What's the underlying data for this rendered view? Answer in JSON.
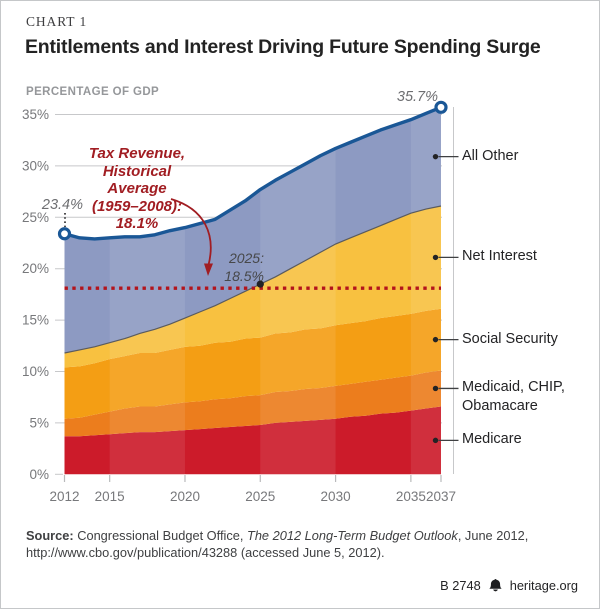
{
  "header": {
    "kicker": "CHART 1",
    "title": "Entitlements and Interest Driving Future Spending Surge",
    "unit_label": "PERCENTAGE OF GDP"
  },
  "chart_data": {
    "type": "area",
    "stacked": true,
    "title": "Entitlements and Interest Driving Future Spending Surge",
    "ylabel": "PERCENTAGE OF GDP",
    "unit": "% of GDP",
    "x_range": [
      2012,
      2037
    ],
    "x_tick_values": [
      2012,
      2015,
      2020,
      2025,
      2030,
      2035,
      2037
    ],
    "x_tick_labels": [
      "2012",
      "2015",
      "2020",
      "2025",
      "2030",
      "2035",
      "2037"
    ],
    "y_tick_values": [
      0,
      5,
      10,
      15,
      20,
      25,
      30,
      35
    ],
    "y_tick_labels": [
      "0%",
      "5%",
      "10%",
      "15%",
      "20%",
      "25%",
      "30%",
      "35%"
    ],
    "ylim": [
      0,
      36
    ],
    "grid": "horizontal",
    "grid_color": "#c7c8ca",
    "axis_color": "#77787b",
    "legend_position": "right",
    "total_line_color": "#1a5796",
    "series": [
      {
        "id": "medicare",
        "name": "Medicare",
        "legend_lines": [
          "Medicare"
        ],
        "color": "#cc1b2a",
        "values": [
          3.7,
          3.7,
          3.8,
          3.9,
          4.0,
          4.1,
          4.1,
          4.2,
          4.3,
          4.4,
          4.5,
          4.6,
          4.7,
          4.8,
          5.0,
          5.1,
          5.2,
          5.3,
          5.4,
          5.6,
          5.7,
          5.9,
          6.0,
          6.2,
          6.4,
          6.6
        ]
      },
      {
        "id": "medicaid_chip_obamacare",
        "name": "Medicaid, CHIP, Obamacare",
        "legend_lines": [
          "Medicaid, CHIP,",
          "Obamacare"
        ],
        "color": "#ec7d1d",
        "values": [
          1.7,
          1.8,
          2.0,
          2.2,
          2.4,
          2.5,
          2.5,
          2.6,
          2.7,
          2.7,
          2.8,
          2.8,
          2.9,
          2.9,
          3.0,
          3.0,
          3.1,
          3.1,
          3.2,
          3.2,
          3.3,
          3.3,
          3.4,
          3.4,
          3.5,
          3.5
        ]
      },
      {
        "id": "social_security",
        "name": "Social Security",
        "legend_lines": [
          "Social Security"
        ],
        "color": "#f49e14",
        "values": [
          5.0,
          5.0,
          5.0,
          5.1,
          5.1,
          5.2,
          5.2,
          5.3,
          5.4,
          5.4,
          5.5,
          5.5,
          5.6,
          5.6,
          5.7,
          5.7,
          5.8,
          5.8,
          5.9,
          5.9,
          5.9,
          6.0,
          6.0,
          6.0,
          6.0,
          6.0
        ]
      },
      {
        "id": "net_interest",
        "name": "Net Interest",
        "legend_lines": [
          "Net Interest"
        ],
        "color": "#f8c140",
        "values": [
          1.4,
          1.6,
          1.6,
          1.6,
          1.7,
          1.9,
          2.3,
          2.5,
          2.8,
          3.3,
          3.6,
          4.2,
          4.6,
          5.2,
          5.5,
          6.2,
          6.7,
          7.4,
          7.9,
          8.3,
          8.7,
          9.0,
          9.4,
          9.8,
          9.9,
          10.0
        ]
      },
      {
        "id": "all_other",
        "name": "All Other",
        "legend_lines": [
          "All Other"
        ],
        "color": "#8d9ac2",
        "values": [
          11.6,
          10.9,
          10.5,
          10.2,
          9.9,
          9.4,
          9.2,
          9.1,
          8.8,
          8.6,
          8.4,
          8.6,
          8.8,
          9.2,
          9.4,
          9.4,
          9.4,
          9.4,
          9.3,
          9.3,
          9.3,
          9.3,
          9.2,
          9.1,
          9.3,
          9.6
        ]
      }
    ],
    "shaded_year_bands": [
      [
        2015,
        2020
      ],
      [
        2025,
        2030
      ],
      [
        2035,
        2037
      ]
    ],
    "reference_line": {
      "value": 18.1,
      "color": "#b3141c",
      "style": "dotted",
      "note_lines": [
        "Tax Revenue,",
        "Historical Average",
        "(1959–2008):",
        "18.1%"
      ]
    },
    "callouts": {
      "start": {
        "year": 2012,
        "value": 23.4,
        "label": "23.4%"
      },
      "end": {
        "year": 2037,
        "value": 35.7,
        "label": "35.7%"
      },
      "crossing": {
        "year": 2025,
        "value": 18.5,
        "label_lines": [
          "2025:",
          "18.5%"
        ]
      }
    }
  },
  "source": {
    "label": "Source:",
    "seg1": " Congressional Budget Office, ",
    "title_italic": "The 2012 Long-Term Budget Outlook",
    "seg2": ", June 2012,",
    "line2": "http://www.cbo.gov/publication/43288 (accessed June 5, 2012)."
  },
  "footer": {
    "report_id": "B 2748",
    "site": "heritage.org"
  }
}
